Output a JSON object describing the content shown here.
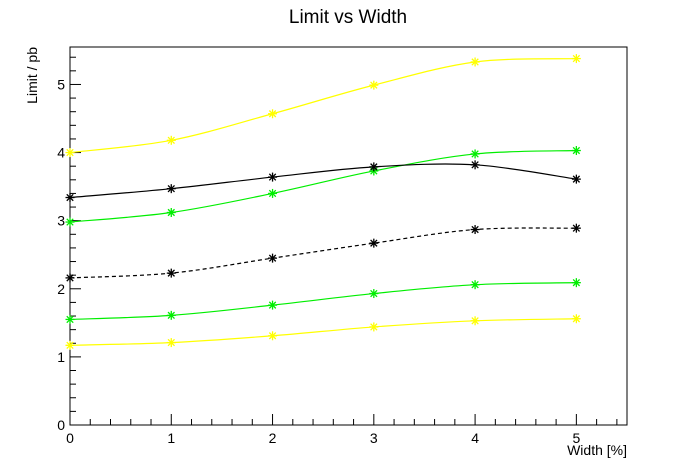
{
  "chart_data": {
    "type": "line",
    "title": "Limit vs Width",
    "xlabel": "Width [%]",
    "ylabel": "Limit / pb",
    "xlim": [
      0,
      5.5
    ],
    "ylim": [
      0,
      5.55
    ],
    "xticks": [
      "0",
      "1",
      "2",
      "3",
      "4",
      "5"
    ],
    "yticks": [
      "0",
      "1",
      "2",
      "3",
      "4",
      "5"
    ],
    "x": [
      0,
      1,
      2,
      3,
      4,
      5
    ],
    "grid": false,
    "legend": "none",
    "series": [
      {
        "values": [
          4.0,
          4.18,
          4.57,
          4.99,
          5.33,
          5.38
        ],
        "color": "#ffff00",
        "line_style": "solid",
        "marker": "asterisk"
      },
      {
        "values": [
          2.98,
          3.12,
          3.4,
          3.73,
          3.98,
          4.03
        ],
        "color": "#00ee00",
        "line_style": "solid",
        "marker": "asterisk"
      },
      {
        "values": [
          3.34,
          3.47,
          3.64,
          3.79,
          3.82,
          3.61
        ],
        "color": "#000000",
        "line_style": "solid",
        "marker": "asterisk"
      },
      {
        "values": [
          2.16,
          2.23,
          2.45,
          2.67,
          2.87,
          2.89
        ],
        "color": "#000000",
        "line_style": "dashed",
        "marker": "asterisk"
      },
      {
        "values": [
          1.55,
          1.61,
          1.76,
          1.93,
          2.06,
          2.09
        ],
        "color": "#00ee00",
        "line_style": "solid",
        "marker": "asterisk"
      },
      {
        "values": [
          1.17,
          1.21,
          1.31,
          1.44,
          1.53,
          1.56
        ],
        "color": "#ffff00",
        "line_style": "solid",
        "marker": "asterisk"
      }
    ]
  }
}
